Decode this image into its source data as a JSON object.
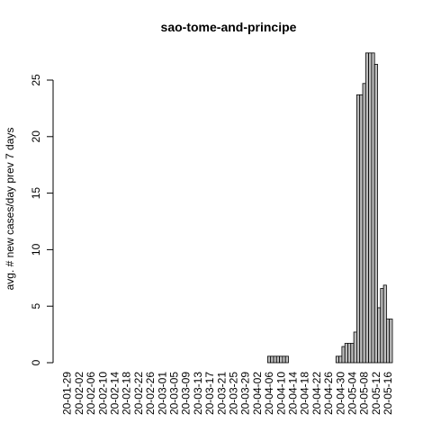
{
  "chart_data": {
    "type": "bar",
    "title": "sao-tome-and-principe",
    "xlabel": "",
    "ylabel": "avg. # new cases/day prev  7  days",
    "ylim": [
      0,
      28
    ],
    "yticks": [
      0,
      5,
      10,
      15,
      20,
      25
    ],
    "grid": false,
    "legend": "none",
    "bar_fill": "#bebebe",
    "bar_stroke": "#000000",
    "tick_labels": [
      "20-01-29",
      "20-02-02",
      "20-02-06",
      "20-02-10",
      "20-02-14",
      "20-02-18",
      "20-02-22",
      "20-02-26",
      "20-03-01",
      "20-03-05",
      "20-03-09",
      "20-03-13",
      "20-03-17",
      "20-03-21",
      "20-03-25",
      "20-03-29",
      "20-04-02",
      "20-04-06",
      "20-04-10",
      "20-04-14",
      "20-04-18",
      "20-04-22",
      "20-04-26",
      "20-04-30",
      "20-05-04",
      "20-05-08",
      "20-05-12",
      "20-05-16"
    ],
    "tick_every": 4,
    "values": [
      0,
      0,
      0,
      0,
      0,
      0,
      0,
      0,
      0,
      0,
      0,
      0,
      0,
      0,
      0,
      0,
      0,
      0,
      0,
      0,
      0,
      0,
      0,
      0,
      0,
      0,
      0,
      0,
      0,
      0,
      0,
      0,
      0,
      0,
      0,
      0,
      0,
      0,
      0,
      0,
      0,
      0,
      0,
      0,
      0,
      0,
      0,
      0,
      0,
      0,
      0,
      0,
      0,
      0,
      0,
      0,
      0,
      0,
      0,
      0,
      0,
      0,
      0,
      0,
      0,
      0,
      0,
      0,
      0.57,
      0.57,
      0.57,
      0.57,
      0.57,
      0.57,
      0.57,
      0,
      0,
      0,
      0,
      0,
      0,
      0,
      0,
      0,
      0,
      0,
      0,
      0,
      0,
      0,
      0,
      0.57,
      0.57,
      1.43,
      1.71,
      1.71,
      1.71,
      2.71,
      23.7,
      23.7,
      24.7,
      27.4,
      27.4,
      27.4,
      26.4,
      4.86,
      6.57,
      6.86,
      3.86,
      3.86
    ]
  }
}
